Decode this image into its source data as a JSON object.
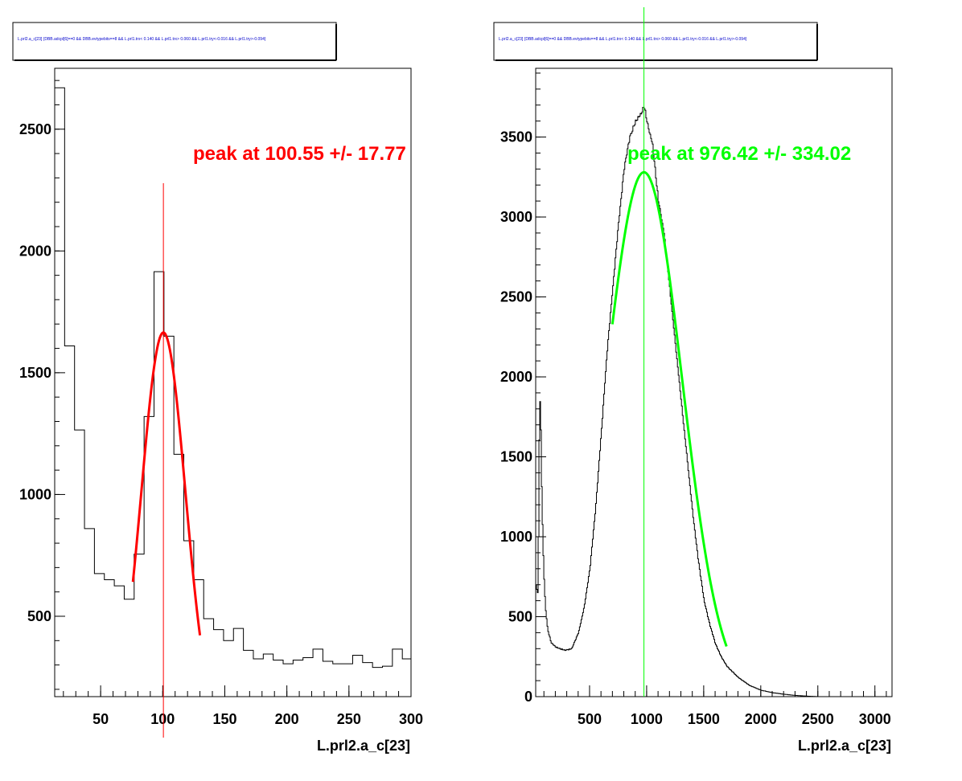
{
  "chart_data": [
    {
      "type": "histogram",
      "title": "L.prl2.a_c[23] {DBB.adcpl[6]==0 && DBB.evtypebits==8 &&  L.prl1.trx< 0.140 && L.prl1.trx> 0.060 && L.prl1.try<-0.016 && L.prl1.try>-0.094}",
      "xlabel": "L.prl2.a_c[23]",
      "ylabel": "",
      "xlim": [
        13,
        300
      ],
      "ylim": [
        170,
        2750
      ],
      "xticks": [
        50,
        100,
        150,
        200,
        250,
        300
      ],
      "yticks": [
        500,
        1000,
        1500,
        2000,
        2500
      ],
      "color": "#000000",
      "bin_edges": [
        13,
        21,
        29,
        37,
        45,
        53,
        61,
        69,
        77,
        85,
        93,
        101,
        109,
        117,
        125,
        133,
        141,
        149,
        157,
        165,
        173,
        181,
        189,
        197,
        205,
        213,
        221,
        229,
        237,
        245,
        253,
        261,
        269,
        277,
        285,
        293,
        301
      ],
      "counts": [
        2670,
        1610,
        1265,
        860,
        675,
        650,
        625,
        570,
        755,
        1320,
        1915,
        1650,
        1165,
        810,
        650,
        490,
        445,
        400,
        450,
        360,
        325,
        345,
        320,
        305,
        320,
        330,
        365,
        315,
        305,
        305,
        340,
        310,
        290,
        295,
        365,
        325
      ],
      "fit": {
        "color": "#ff0000",
        "amplitude": 1665,
        "mean": 100.55,
        "sigma": 17.77,
        "range": [
          76,
          130
        ]
      },
      "marker_line": {
        "x": 100.55,
        "color": "#ff0000"
      },
      "annotation": {
        "text": "peak at 100.55 +/- 17.77",
        "color": "#ff0000"
      }
    },
    {
      "type": "histogram",
      "title": "L.prl2.a_c[23] {DBB.adcpl[6]==0 && DBB.evtypebits==8 &&  L.prl1.trx< 0.140 && L.prl1.trx> 0.060 && L.prl1.try<-0.016 && L.prl1.try>-0.094}",
      "xlabel": "L.prl2.a_c[23]",
      "ylabel": "",
      "xlim": [
        28,
        3150
      ],
      "ylim": [
        0,
        3930
      ],
      "xticks": [
        500,
        1000,
        1500,
        2000,
        2500,
        3000
      ],
      "yticks": [
        0,
        500,
        1000,
        1500,
        2000,
        2500,
        3000,
        3500
      ],
      "color": "#000000",
      "curve_points": [
        [
          28,
          700
        ],
        [
          45,
          640
        ],
        [
          60,
          1920
        ],
        [
          70,
          1700
        ],
        [
          80,
          1200
        ],
        [
          95,
          800
        ],
        [
          110,
          560
        ],
        [
          130,
          420
        ],
        [
          160,
          340
        ],
        [
          200,
          310
        ],
        [
          280,
          290
        ],
        [
          340,
          300
        ],
        [
          400,
          400
        ],
        [
          450,
          560
        ],
        [
          500,
          800
        ],
        [
          550,
          1180
        ],
        [
          600,
          1650
        ],
        [
          650,
          2150
        ],
        [
          700,
          2550
        ],
        [
          750,
          2950
        ],
        [
          800,
          3300
        ],
        [
          850,
          3500
        ],
        [
          900,
          3600
        ],
        [
          950,
          3650
        ],
        [
          975,
          3700
        ],
        [
          1000,
          3600
        ],
        [
          1050,
          3450
        ],
        [
          1100,
          3100
        ],
        [
          1150,
          2900
        ],
        [
          1200,
          2550
        ],
        [
          1250,
          2200
        ],
        [
          1300,
          1850
        ],
        [
          1350,
          1500
        ],
        [
          1400,
          1150
        ],
        [
          1450,
          850
        ],
        [
          1500,
          600
        ],
        [
          1550,
          450
        ],
        [
          1600,
          330
        ],
        [
          1650,
          250
        ],
        [
          1700,
          190
        ],
        [
          1800,
          120
        ],
        [
          1900,
          70
        ],
        [
          2000,
          40
        ],
        [
          2100,
          25
        ],
        [
          2200,
          15
        ],
        [
          2300,
          8
        ],
        [
          2400,
          3
        ],
        [
          2500,
          0
        ]
      ],
      "fit": {
        "color": "#00ff00",
        "amplitude": 3280,
        "mean": 976.42,
        "sigma": 334.02,
        "range": [
          700,
          1700
        ]
      },
      "marker_line": {
        "x": 976.42,
        "color": "#00ff00"
      },
      "annotation": {
        "text": "peak at 976.42 +/- 334.02",
        "color": "#00ff00"
      }
    }
  ]
}
